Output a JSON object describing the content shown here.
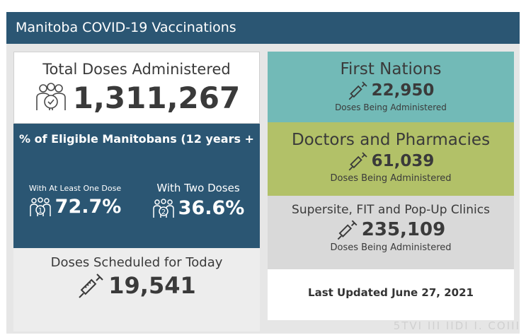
{
  "header": {
    "title": "Manitoba COVID-19 Vaccinations"
  },
  "total": {
    "title": "Total Doses Administered",
    "value": "1,311,267",
    "icon": "people-icon"
  },
  "eligible": {
    "title": "% of Eligible Manitobans (12 years +",
    "one_dose": {
      "label": "With At Least One Dose",
      "value": "72.7%",
      "icon": "group-one-icon"
    },
    "two_doses": {
      "label": "With Two Doses",
      "value": "36.6%",
      "icon": "group-two-icon"
    }
  },
  "scheduled": {
    "title": "Doses Scheduled for Today",
    "value": "19,541",
    "icon": "syringe-icon"
  },
  "first_nations": {
    "title": "First Nations",
    "value": "22,950",
    "subtitle": "Doses Being Administered"
  },
  "doctors": {
    "title": "Doctors and Pharmacies",
    "value": "61,039",
    "subtitle": "Doses Being Administered"
  },
  "supersite": {
    "title": "Supersite, FIT and Pop-Up Clinics",
    "value": "235,109",
    "subtitle": "Doses Being Administered"
  },
  "updated": {
    "text": "Last Updated June 27, 2021"
  },
  "watermark": {
    "text": "5TVI III IIDI I. COIII"
  },
  "colors": {
    "header": "#2b5673",
    "first_nations": "#72bab7",
    "doctors": "#b2c168",
    "supersite": "#d9d9d9"
  }
}
